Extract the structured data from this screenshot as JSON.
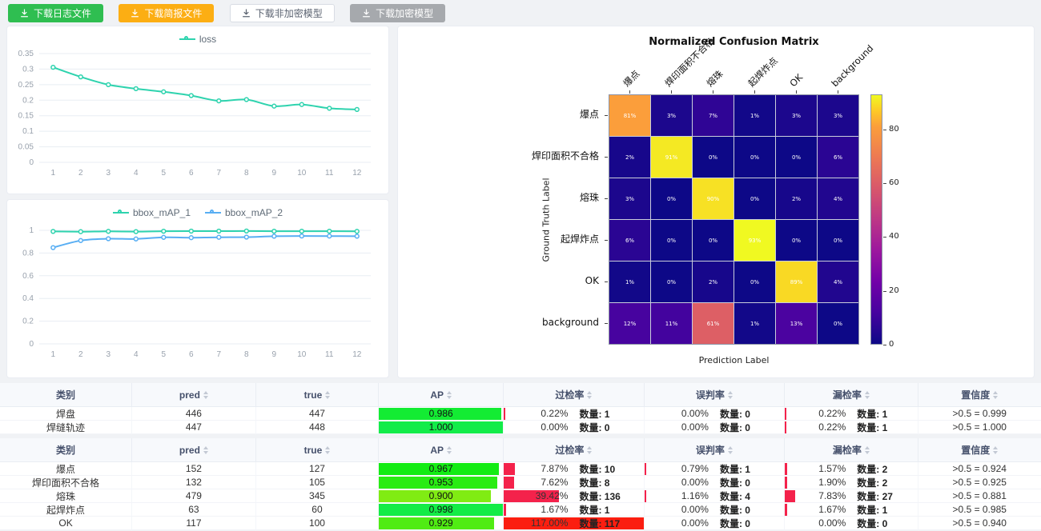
{
  "toolbar": {
    "buttons": [
      {
        "label": "下载日志文件",
        "style": "success"
      },
      {
        "label": "下载简报文件",
        "style": "warning"
      },
      {
        "label": "下载非加密模型",
        "style": "default"
      },
      {
        "label": "下载加密模型",
        "style": "disabled"
      }
    ]
  },
  "chart_data": [
    {
      "type": "line",
      "name": "loss-curve",
      "x": [
        1,
        2,
        3,
        4,
        5,
        6,
        7,
        8,
        9,
        10,
        11,
        12
      ],
      "series": [
        {
          "name": "loss",
          "color": "#2ed3ae",
          "values": [
            0.306,
            0.275,
            0.25,
            0.237,
            0.227,
            0.215,
            0.198,
            0.202,
            0.181,
            0.186,
            0.174,
            0.17
          ]
        }
      ],
      "ylim": [
        0,
        0.35
      ],
      "y_ticks": [
        0,
        0.05,
        0.1,
        0.15,
        0.2,
        0.25,
        0.3,
        0.35
      ],
      "grid": true,
      "legend_position": "top"
    },
    {
      "type": "line",
      "name": "bbox-map-curve",
      "x": [
        1,
        2,
        3,
        4,
        5,
        6,
        7,
        8,
        9,
        10,
        11,
        12
      ],
      "series": [
        {
          "name": "bbox_mAP_1",
          "color": "#2ed3ae",
          "values": [
            0.99,
            0.988,
            0.991,
            0.989,
            0.992,
            0.993,
            0.993,
            0.994,
            0.992,
            0.992,
            0.992,
            0.991
          ]
        },
        {
          "name": "bbox_mAP_2",
          "color": "#58aef3",
          "values": [
            0.848,
            0.91,
            0.926,
            0.924,
            0.938,
            0.935,
            0.939,
            0.94,
            0.948,
            0.95,
            0.949,
            0.948
          ]
        }
      ],
      "ylim": [
        0,
        1
      ],
      "y_ticks": [
        0,
        0.2,
        0.4,
        0.6,
        0.8,
        1
      ],
      "grid": true,
      "legend_position": "top"
    },
    {
      "type": "heatmap",
      "name": "normalized-confusion-matrix",
      "title": "Normalized Confusion Matrix",
      "xlabel": "Prediction Label",
      "ylabel": "Ground Truth Label",
      "categories": [
        "爆点",
        "焊印面积不合格",
        "熔珠",
        "起焊炸点",
        "OK",
        "background"
      ],
      "values_pct": [
        [
          81,
          3,
          7,
          1,
          3,
          3
        ],
        [
          2,
          91,
          0,
          0,
          0,
          6
        ],
        [
          3,
          0,
          90,
          0,
          2,
          4
        ],
        [
          6,
          0,
          0,
          93,
          0,
          0
        ],
        [
          1,
          0,
          2,
          0,
          89,
          4
        ],
        [
          12,
          11,
          61,
          1,
          13,
          0
        ]
      ],
      "colormap": "plasma",
      "vmax": 93,
      "colorbar_ticks": [
        0,
        20,
        40,
        60,
        80
      ]
    }
  ],
  "tables": [
    {
      "count_label": "数量:",
      "headers": [
        {
          "label": "类别",
          "sortable": false
        },
        {
          "label": "pred",
          "sortable": true
        },
        {
          "label": "true",
          "sortable": true
        },
        {
          "label": "AP",
          "sortable": true
        },
        {
          "label": "过检率",
          "sortable": true
        },
        {
          "label": "误判率",
          "sortable": true
        },
        {
          "label": "漏检率",
          "sortable": true
        },
        {
          "label": "置信度",
          "sortable": true
        }
      ],
      "rows": [
        {
          "category": "焊盘",
          "pred": 446,
          "true": 447,
          "ap": 0.986,
          "over_pct": 0.22,
          "over_cnt": 1,
          "mis_pct": 0.0,
          "mis_cnt": 0,
          "miss_pct": 0.22,
          "miss_cnt": 1,
          "conf": ">0.5 = 0.999"
        },
        {
          "category": "焊缝轨迹",
          "pred": 447,
          "true": 448,
          "ap": 1.0,
          "over_pct": 0.0,
          "over_cnt": 0,
          "mis_pct": 0.0,
          "mis_cnt": 0,
          "miss_pct": 0.22,
          "miss_cnt": 1,
          "conf": ">0.5 = 1.000"
        }
      ]
    },
    {
      "count_label": "数量:",
      "headers": [
        {
          "label": "类别",
          "sortable": false
        },
        {
          "label": "pred",
          "sortable": true
        },
        {
          "label": "true",
          "sortable": true
        },
        {
          "label": "AP",
          "sortable": true
        },
        {
          "label": "过检率",
          "sortable": true
        },
        {
          "label": "误判率",
          "sortable": true
        },
        {
          "label": "漏检率",
          "sortable": true
        },
        {
          "label": "置信度",
          "sortable": true
        }
      ],
      "rows": [
        {
          "category": "爆点",
          "pred": 152,
          "true": 127,
          "ap": 0.967,
          "over_pct": 7.87,
          "over_cnt": 10,
          "mis_pct": 0.79,
          "mis_cnt": 1,
          "miss_pct": 1.57,
          "miss_cnt": 2,
          "conf": ">0.5 = 0.924"
        },
        {
          "category": "焊印面积不合格",
          "pred": 132,
          "true": 105,
          "ap": 0.953,
          "over_pct": 7.62,
          "over_cnt": 8,
          "mis_pct": 0.0,
          "mis_cnt": 0,
          "miss_pct": 1.9,
          "miss_cnt": 2,
          "conf": ">0.5 = 0.925"
        },
        {
          "category": "熔珠",
          "pred": 479,
          "true": 345,
          "ap": 0.9,
          "over_pct": 39.42,
          "over_cnt": 136,
          "mis_pct": 1.16,
          "mis_cnt": 4,
          "miss_pct": 7.83,
          "miss_cnt": 27,
          "conf": ">0.5 = 0.881"
        },
        {
          "category": "起焊炸点",
          "pred": 63,
          "true": 60,
          "ap": 0.998,
          "over_pct": 1.67,
          "over_cnt": 1,
          "mis_pct": 0.0,
          "mis_cnt": 0,
          "miss_pct": 1.67,
          "miss_cnt": 1,
          "conf": ">0.5 = 0.985"
        },
        {
          "category": "OK",
          "pred": 117,
          "true": 100,
          "ap": 0.929,
          "over_pct": 117.0,
          "over_cnt": 117,
          "mis_pct": 0.0,
          "mis_cnt": 0,
          "miss_pct": 0.0,
          "miss_cnt": 0,
          "conf": ">0.5 = 0.940"
        }
      ]
    }
  ]
}
